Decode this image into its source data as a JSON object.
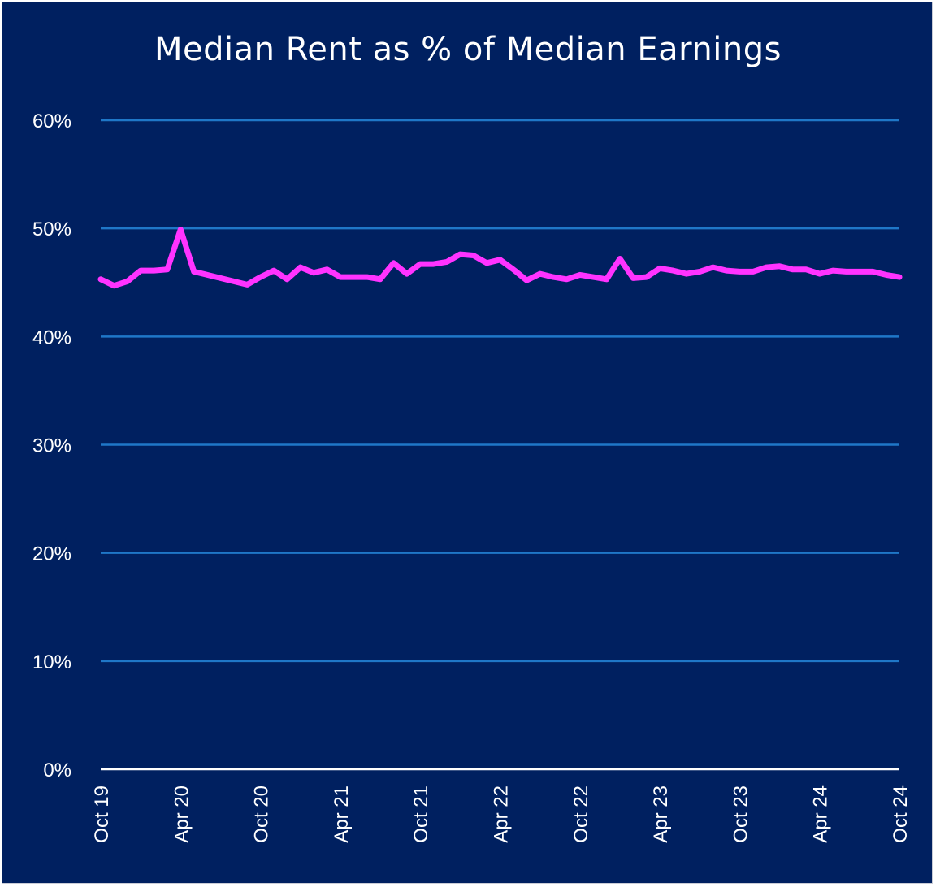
{
  "chart_data": {
    "type": "line",
    "title": "Median Rent as % of Median Earnings",
    "xlabel": "",
    "ylabel": "",
    "ylim": [
      0,
      60
    ],
    "y_ticks": [
      "0%",
      "10%",
      "20%",
      "30%",
      "40%",
      "50%",
      "60%"
    ],
    "y_tick_values": [
      0,
      10,
      20,
      30,
      40,
      50,
      60
    ],
    "x_ticks": [
      "Oct 19",
      "Apr 20",
      "Oct 20",
      "Apr 21",
      "Oct 21",
      "Apr 22",
      "Oct 22",
      "Apr 23",
      "Oct 23",
      "Apr 24",
      "Oct 24"
    ],
    "x_range": [
      "Oct 19",
      "Oct 24"
    ],
    "grid": true,
    "colors": {
      "background": "#002060",
      "grid": "#1f77c8",
      "line": "#ff33ff",
      "axis": "#ffffff"
    },
    "series": [
      {
        "x": [
          "Oct 19",
          "Nov 19",
          "Dec 19",
          "Jan 20",
          "Feb 20",
          "Mar 20",
          "Apr 20",
          "May 20",
          "Jun 20",
          "Jul 20",
          "Aug 20",
          "Sep 20",
          "Oct 20",
          "Nov 20",
          "Dec 20",
          "Jan 21",
          "Feb 21",
          "Mar 21",
          "Apr 21",
          "May 21",
          "Jun 21",
          "Jul 21",
          "Aug 21",
          "Sep 21",
          "Oct 21",
          "Nov 21",
          "Dec 21",
          "Jan 22",
          "Feb 22",
          "Mar 22",
          "Apr 22",
          "May 22",
          "Jun 22",
          "Jul 22",
          "Aug 22",
          "Sep 22",
          "Oct 22",
          "Nov 22",
          "Dec 22",
          "Jan 23",
          "Feb 23",
          "Mar 23",
          "Apr 23",
          "May 23",
          "Jun 23",
          "Jul 23",
          "Aug 23",
          "Sep 23",
          "Oct 23",
          "Nov 23",
          "Dec 23",
          "Jan 24",
          "Feb 24",
          "Mar 24",
          "Apr 24",
          "May 24",
          "Jun 24",
          "Jul 24",
          "Aug 24",
          "Sep 24",
          "Oct 24"
        ],
        "values": [
          45.3,
          44.7,
          45.1,
          46.1,
          46.1,
          46.2,
          49.9,
          46.0,
          45.7,
          45.4,
          45.1,
          44.8,
          45.5,
          46.1,
          45.3,
          46.4,
          45.9,
          46.2,
          45.5,
          45.5,
          45.5,
          45.3,
          46.8,
          45.8,
          46.7,
          46.7,
          46.9,
          47.6,
          47.5,
          46.8,
          47.1,
          46.2,
          45.2,
          45.8,
          45.5,
          45.3,
          45.7,
          45.5,
          45.3,
          47.2,
          45.4,
          45.5,
          46.3,
          46.1,
          45.8,
          46.0,
          46.4,
          46.1,
          46.0,
          46.0,
          46.4,
          46.5,
          46.2,
          46.2,
          45.8,
          46.1,
          46.0,
          46.0,
          46.0,
          45.7,
          45.5
        ]
      }
    ]
  }
}
